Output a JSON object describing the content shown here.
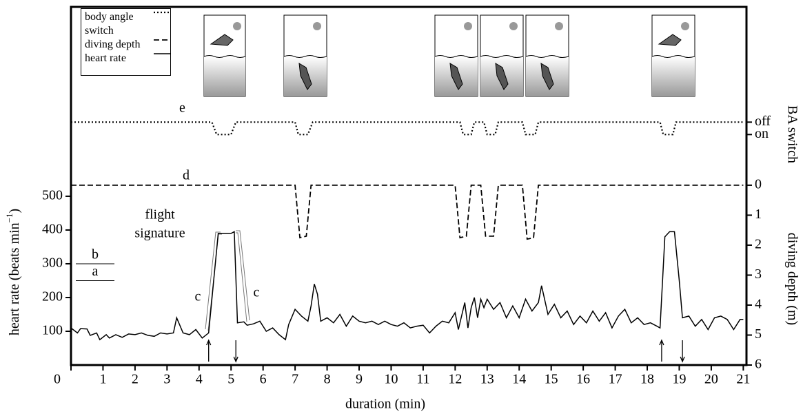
{
  "chart_data": {
    "type": "line",
    "x_label": "duration (min)",
    "y_label": {
      "text": "heart rate (beats min",
      "sup": "−1",
      "tail": ")"
    },
    "y2_label": "diving depth (m)",
    "y3_label": "BA switch",
    "xlim": [
      0,
      21.1
    ],
    "xticks": [
      0,
      1,
      2,
      3,
      4,
      5,
      6,
      7,
      8,
      9,
      10,
      11,
      12,
      13,
      14,
      15,
      16,
      17,
      18,
      19,
      20,
      21
    ],
    "ylim": [
      0,
      1061
    ],
    "yticks": [
      100,
      200,
      300,
      400,
      500
    ],
    "y2lim": [
      6,
      -5.95
    ],
    "y2ticks": [
      0,
      1,
      2,
      3,
      4,
      5,
      6
    ],
    "y3lim": [
      -18.6,
      10.3
    ],
    "y3ticks": [
      {
        "value": 1,
        "label": "off"
      },
      {
        "value": 0,
        "label": "on"
      }
    ],
    "thresholds": [
      {
        "label": "a",
        "value": 250
      },
      {
        "label": "b",
        "value": 300
      }
    ],
    "up_arrows_x": [
      4.3,
      18.45
    ],
    "down_arrows_x": [
      5.15,
      19.1
    ],
    "annotations": {
      "e": "e",
      "d": "d",
      "flight": "flight",
      "signature": "signature",
      "c_left": "c",
      "c_right": "c"
    },
    "series": [
      {
        "name": "body angle switch",
        "axis": "y3",
        "dash": "dotted",
        "color": "#000000",
        "x": [
          0,
          4.4,
          4.55,
          5.0,
          5.15,
          7.0,
          7.1,
          7.4,
          7.55,
          12.15,
          12.25,
          12.5,
          12.6,
          12.9,
          13.0,
          13.25,
          13.35,
          14.1,
          14.2,
          14.5,
          14.6,
          18.4,
          18.5,
          18.8,
          18.9,
          21
        ],
        "values": [
          1,
          1,
          0,
          0,
          1,
          1,
          0,
          0,
          1,
          1,
          0,
          0,
          1,
          1,
          0,
          0,
          1,
          1,
          0,
          0,
          1,
          1,
          0,
          0,
          1,
          1
        ]
      },
      {
        "name": "diving depth",
        "axis": "y2",
        "dash": "dashed",
        "color": "#000000",
        "x": [
          0,
          7.0,
          7.15,
          7.35,
          7.5,
          12.0,
          12.15,
          12.35,
          12.5,
          12.8,
          12.95,
          13.2,
          13.35,
          14.1,
          14.25,
          14.45,
          14.6,
          21
        ],
        "values": [
          0,
          0,
          1.75,
          1.7,
          0,
          0,
          1.75,
          1.7,
          0,
          0,
          1.7,
          1.7,
          0,
          0,
          1.8,
          1.75,
          0,
          0
        ]
      },
      {
        "name": "heart rate",
        "axis": "y",
        "dash": "solid",
        "color": "#000000",
        "x": [
          0,
          0.2,
          0.3,
          0.5,
          0.6,
          0.8,
          0.9,
          1.1,
          1.2,
          1.4,
          1.6,
          1.8,
          2.0,
          2.2,
          2.4,
          2.6,
          2.8,
          3.0,
          3.2,
          3.3,
          3.5,
          3.7,
          3.9,
          4.1,
          4.3,
          4.6,
          5.0,
          5.1,
          5.2,
          5.4,
          5.5,
          5.7,
          5.9,
          6.1,
          6.3,
          6.5,
          6.7,
          6.8,
          7.0,
          7.2,
          7.4,
          7.5,
          7.6,
          7.7,
          7.8,
          8.0,
          8.2,
          8.4,
          8.6,
          8.8,
          9.0,
          9.2,
          9.4,
          9.6,
          9.8,
          10.0,
          10.2,
          10.4,
          10.6,
          10.8,
          11.0,
          11.2,
          11.4,
          11.6,
          11.8,
          12.0,
          12.1,
          12.3,
          12.4,
          12.5,
          12.6,
          12.7,
          12.8,
          12.9,
          13.0,
          13.2,
          13.4,
          13.6,
          13.8,
          14.0,
          14.2,
          14.4,
          14.6,
          14.7,
          14.9,
          15.1,
          15.3,
          15.5,
          15.7,
          15.9,
          16.1,
          16.3,
          16.5,
          16.7,
          16.9,
          17.1,
          17.3,
          17.5,
          17.7,
          17.9,
          18.1,
          18.3,
          18.4,
          18.55,
          18.7,
          18.85,
          19.0,
          19.1,
          19.3,
          19.5,
          19.7,
          19.9,
          20.1,
          20.3,
          20.5,
          20.7,
          20.9,
          21.0
        ],
        "values": [
          110,
          95,
          108,
          107,
          88,
          95,
          75,
          90,
          80,
          90,
          82,
          92,
          90,
          95,
          88,
          85,
          95,
          92,
          95,
          140,
          95,
          90,
          105,
          80,
          95,
          390,
          390,
          395,
          125,
          128,
          118,
          122,
          130,
          100,
          110,
          90,
          75,
          120,
          165,
          145,
          130,
          175,
          240,
          210,
          130,
          140,
          125,
          150,
          115,
          145,
          130,
          125,
          130,
          120,
          130,
          120,
          115,
          125,
          110,
          115,
          118,
          95,
          115,
          130,
          125,
          155,
          105,
          185,
          110,
          170,
          200,
          140,
          195,
          170,
          195,
          165,
          185,
          140,
          175,
          140,
          195,
          160,
          185,
          235,
          150,
          180,
          140,
          160,
          120,
          145,
          125,
          160,
          130,
          155,
          110,
          145,
          165,
          125,
          140,
          120,
          125,
          115,
          110,
          380,
          395,
          395,
          250,
          140,
          145,
          115,
          135,
          105,
          140,
          145,
          135,
          105,
          135,
          135
        ]
      }
    ]
  }
}
